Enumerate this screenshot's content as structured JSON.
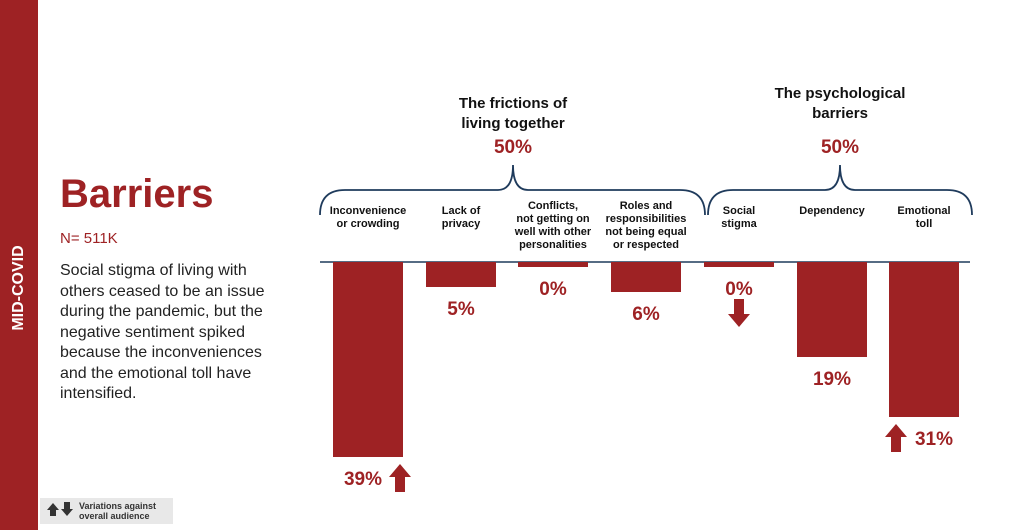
{
  "side_label": "MID-COVID",
  "title": "Barriers",
  "sample": "N= 511K",
  "description": "Social stigma of living with others ceased to be an issue during the pandemic, but the negative sentiment spiked because the inconveniences and the emotional toll have intensified.",
  "legend_note": "Variations against\noverall audience",
  "chart_data": {
    "type": "bar",
    "color": "#9e2224",
    "groups": [
      {
        "title": "The frictions of\nliving together",
        "value": 50,
        "value_label": "50%"
      },
      {
        "title": "The psychological\nbarriers",
        "value": 50,
        "value_label": "50%"
      }
    ],
    "categories": [
      "Inconvenience\nor crowding",
      "Lack of\nprivacy",
      "Conflicts,\nnot getting on\nwell with other\npersonalities",
      "Roles and\nresponsibilities\nnot being equal\nor respected",
      "Social\nstigma",
      "Dependency",
      "Emotional\ntoll"
    ],
    "values": [
      39,
      5,
      0,
      6,
      0,
      19,
      31
    ],
    "value_labels": [
      "39%",
      "5%",
      "0%",
      "6%",
      "0%",
      "19%",
      "31%"
    ],
    "trend": [
      "up",
      null,
      null,
      null,
      "down",
      null,
      "up"
    ]
  }
}
